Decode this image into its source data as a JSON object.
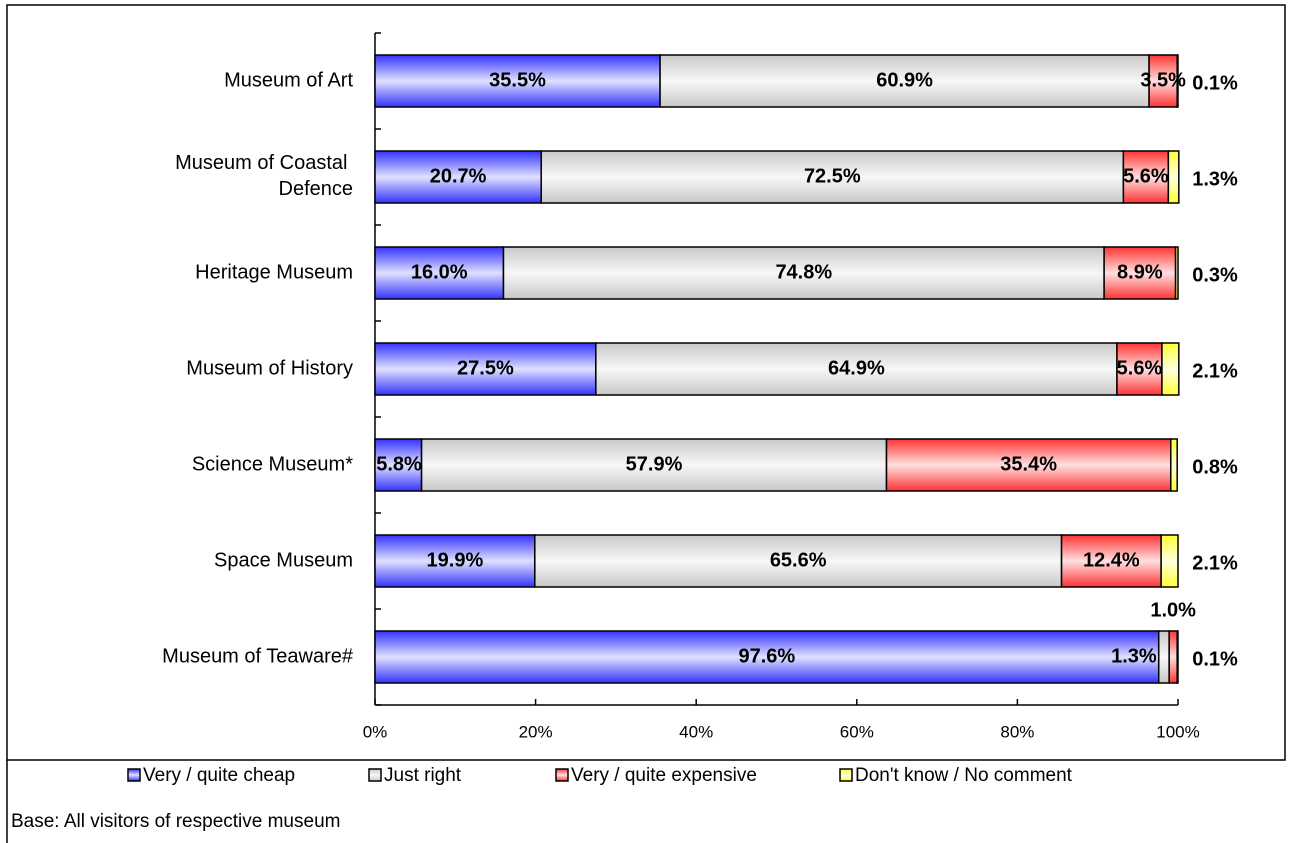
{
  "chart_data": {
    "type": "stacked_bar_horizontal",
    "categories": [
      "Museum of Art",
      "Museum of Coastal Defence",
      "Heritage Museum",
      "Museum of History",
      "Science Museum*",
      "Space Museum",
      "Museum of Teaware#"
    ],
    "series": [
      {
        "name": "Very / quite cheap",
        "color": "#3333ff",
        "values": [
          35.5,
          20.7,
          16.0,
          27.5,
          5.8,
          19.9,
          97.6
        ],
        "value_labels": [
          "35.5%",
          "20.7%",
          "16.0%",
          "27.5%",
          "5.8%",
          "19.9%",
          "97.6%"
        ]
      },
      {
        "name": "Just right",
        "color": "#c8c8c8",
        "values": [
          60.9,
          72.5,
          74.8,
          64.9,
          57.9,
          65.6,
          1.3
        ],
        "value_labels": [
          "60.9%",
          "72.5%",
          "74.8%",
          "64.9%",
          "57.9%",
          "65.6%",
          "1.3%"
        ]
      },
      {
        "name": "Very / quite expensive",
        "color": "#ff3333",
        "values": [
          3.5,
          5.6,
          8.9,
          5.6,
          35.4,
          12.4,
          1.0
        ],
        "value_labels": [
          "3.5%",
          "5.6%",
          "8.9%",
          "5.6%",
          "35.4%",
          "12.4%",
          "1.0%"
        ]
      },
      {
        "name": "Don't know / No comment",
        "color": "#ffff33",
        "values": [
          0.1,
          1.3,
          0.3,
          2.1,
          0.8,
          2.1,
          0.1
        ],
        "value_labels": [
          "0.1%",
          "1.3%",
          "0.3%",
          "2.1%",
          "0.8%",
          "2.1%",
          "0.1%"
        ]
      }
    ],
    "xlim": [
      0,
      100
    ],
    "xticks": [
      {
        "value": 0,
        "label": "0%"
      },
      {
        "value": 20,
        "label": "20%"
      },
      {
        "value": 40,
        "label": "40%"
      },
      {
        "value": 60,
        "label": "60%"
      },
      {
        "value": 80,
        "label": "80%"
      },
      {
        "value": 100,
        "label": "100%"
      }
    ],
    "legend": "bottom",
    "footnote": "Base: All visitors of respective museum"
  }
}
